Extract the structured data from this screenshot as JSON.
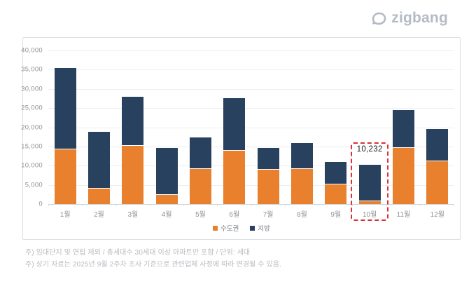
{
  "logo": {
    "text": "zigbang",
    "color": "#b4bbc4"
  },
  "chart_data": {
    "type": "bar",
    "stacked": true,
    "title": "",
    "categories": [
      "1월",
      "2월",
      "3월",
      "4월",
      "5월",
      "6월",
      "7월",
      "8월",
      "9월",
      "10월",
      "11월",
      "12월"
    ],
    "series": [
      {
        "name": "수도권",
        "color": "#e8802d",
        "values": [
          14400,
          4200,
          15400,
          2500,
          9300,
          14000,
          9100,
          9400,
          5300,
          1000,
          14800,
          11300
        ]
      },
      {
        "name": "지방",
        "color": "#27415f",
        "values": [
          21100,
          14600,
          12600,
          12100,
          8000,
          13500,
          5600,
          6500,
          5600,
          9232,
          9700,
          8300
        ]
      }
    ],
    "totals": [
      35500,
      18800,
      28000,
      14600,
      17300,
      27500,
      14700,
      15900,
      10900,
      10232,
      24500,
      19600
    ],
    "ylim": [
      0,
      40000
    ],
    "yticks_top_down": [
      "40,000",
      "35,000",
      "30,000",
      "25,000",
      "20,000",
      "15,000",
      "10,000",
      "5,000",
      "0"
    ],
    "grid": true,
    "legend_position": "bottom",
    "highlight": {
      "category": "10월",
      "index": 9,
      "label": "10,232",
      "box_color": "#d8303c"
    }
  },
  "footnotes": [
    "주) 임대단지 및 연립 제외 / 총세대수 30세대 이상 아파트만 포함 / 단위: 세대",
    "주) 상기 자료는 2025년 9월 2주차 조사 기준으로 관련업체 사정에 따라 변경될 수 있음."
  ]
}
